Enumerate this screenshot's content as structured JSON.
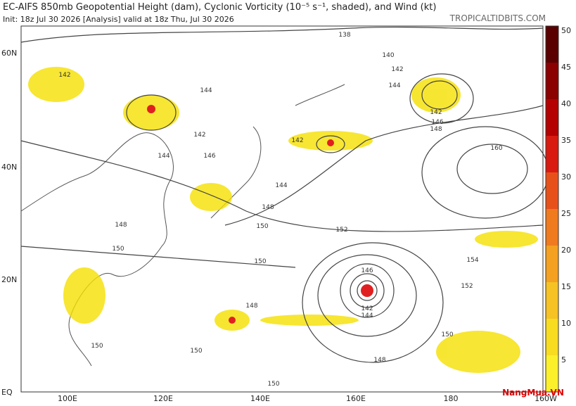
{
  "header": {
    "title": "EC-AIFS 850mb Geopotential Height (dam), Cyclonic Vorticity (10⁻⁵ s⁻¹, shaded), and Wind (kt)",
    "subtitle": "Init: 18z Jul 30 2026   [Analysis]   valid at 18z Thu, Jul 30 2026",
    "source": "TROPICALTIDBITS.COM"
  },
  "map": {
    "lon_labels": [
      "100E",
      "120E",
      "140E",
      "160E",
      "180",
      "160W"
    ],
    "lat_labels": [
      "60N",
      "40N",
      "20N",
      "EQ"
    ],
    "contour_labels": [
      "138",
      "140",
      "142",
      "144",
      "142",
      "144",
      "142",
      "144",
      "146",
      "142",
      "144",
      "148",
      "150",
      "152",
      "150",
      "154",
      "152",
      "160",
      "146",
      "142",
      "144",
      "148",
      "150",
      "148",
      "150",
      "150",
      "150",
      "148",
      "150",
      "142",
      "146",
      "148"
    ]
  },
  "colorbar": {
    "ticks": [
      "50",
      "45",
      "40",
      "35",
      "30",
      "25",
      "20",
      "15",
      "10",
      "5"
    ]
  },
  "watermark": "NangMua.VN"
}
